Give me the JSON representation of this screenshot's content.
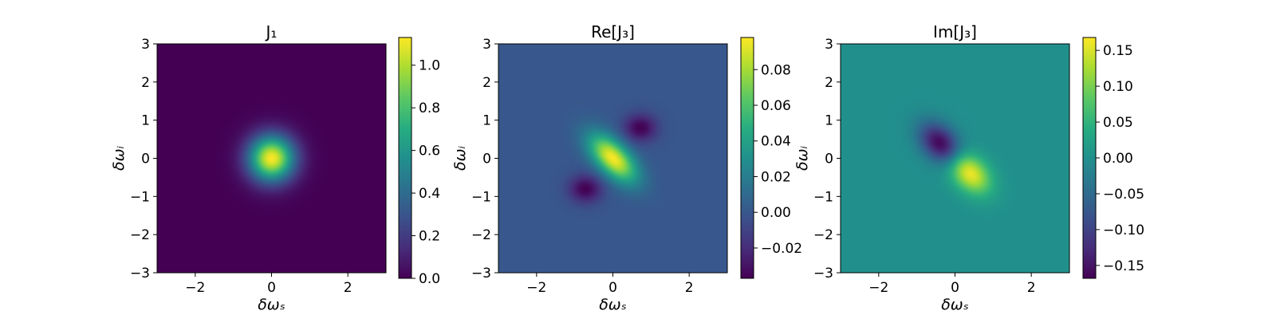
{
  "chart_data": [
    {
      "type": "heatmap",
      "title": "J₁",
      "xlabel": "δωₛ",
      "ylabel": "δωᵢ",
      "xlim": [
        -3,
        3
      ],
      "ylim": [
        -3,
        3
      ],
      "xticks": [
        -2,
        0,
        2
      ],
      "xtick_labels": [
        "−2",
        "0",
        "2"
      ],
      "yticks": [
        -3,
        -2,
        -1,
        0,
        1,
        2,
        3
      ],
      "ytick_labels": [
        "−3",
        "−2",
        "−1",
        "0",
        "1",
        "2",
        "3"
      ],
      "colormap": "viridis",
      "colorbar_range": [
        0,
        1.13
      ],
      "colorbar_ticks": [
        0.0,
        0.2,
        0.4,
        0.6,
        0.8,
        1.0
      ],
      "colorbar_tick_labels": [
        "0.0",
        "0.2",
        "0.4",
        "0.6",
        "0.8",
        "1.0"
      ],
      "surface": {
        "description": "isotropic gaussian centered at origin",
        "peak_value": 1.13,
        "center": [
          0,
          0
        ],
        "sigma": 0.42
      }
    },
    {
      "type": "heatmap",
      "title": "Re[J₃]",
      "xlabel": "δωₛ",
      "ylabel": "δωᵢ",
      "xlim": [
        -3,
        3
      ],
      "ylim": [
        -3,
        3
      ],
      "xticks": [
        -2,
        0,
        2
      ],
      "xtick_labels": [
        "−2",
        "0",
        "2"
      ],
      "yticks": [
        -3,
        -2,
        -1,
        0,
        1,
        2,
        3
      ],
      "ytick_labels": [
        "−3",
        "−2",
        "−1",
        "0",
        "1",
        "2",
        "3"
      ],
      "colormap": "viridis",
      "colorbar_range": [
        -0.037,
        0.098
      ],
      "colorbar_ticks": [
        -0.02,
        0.0,
        0.02,
        0.04,
        0.06,
        0.08
      ],
      "colorbar_tick_labels": [
        "−0.02",
        "0.00",
        "0.02",
        "0.04",
        "0.06",
        "0.08"
      ],
      "surface": {
        "description": "positive lobe along anti-diagonal, negative lobes near (0.7,0.8) and (-0.7,-0.8)",
        "positive_peak": 0.098,
        "negative_peak": -0.037
      }
    },
    {
      "type": "heatmap",
      "title": "Im[J₃]",
      "xlabel": "δωₛ",
      "ylabel": "δωᵢ",
      "xlim": [
        -3,
        3
      ],
      "ylim": [
        -3,
        3
      ],
      "xticks": [
        -2,
        0,
        2
      ],
      "xtick_labels": [
        "−2",
        "0",
        "2"
      ],
      "yticks": [
        -3,
        -2,
        -1,
        0,
        1,
        2,
        3
      ],
      "ytick_labels": [
        "−3",
        "−2",
        "−1",
        "0",
        "1",
        "2",
        "3"
      ],
      "colormap": "viridis",
      "colorbar_range": [
        -0.168,
        0.168
      ],
      "colorbar_ticks": [
        -0.15,
        -0.1,
        -0.05,
        0.0,
        0.05,
        0.1,
        0.15
      ],
      "colorbar_tick_labels": [
        "−0.15",
        "−0.10",
        "−0.05",
        "0.00",
        "0.05",
        "0.10",
        "0.15"
      ],
      "surface": {
        "description": "antisymmetric dipole: negative lobe near (-0.4,0.4), positive lobe near (0.4,-0.4)",
        "positive_peak": 0.168,
        "negative_peak": -0.168
      }
    }
  ]
}
